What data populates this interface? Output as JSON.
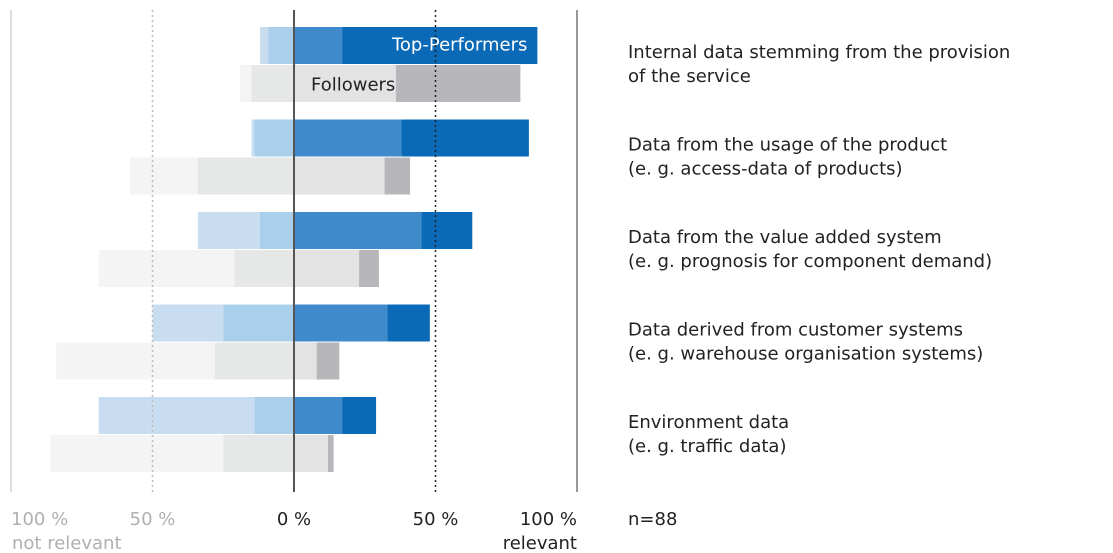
{
  "chart_data": {
    "type": "diverging_bar",
    "categories": [
      "Internal data stemming from the provision\nof the service",
      "Data from the usage of the product\n(e. g. access-data of products)",
      "Data from the value added system\n(e. g. prognosis for component demand)",
      "Data derived from customer systems\n(e. g. warehouse organisation systems)",
      "Environment data\n(e. g. traffic data)"
    ],
    "groups": [
      {
        "name": "Top-Performers",
        "segments": [
          {
            "color": "#c9ddf1",
            "values": [
              3,
              1,
              22,
              25,
              55
            ]
          },
          {
            "color": "#a9cfea",
            "values": [
              9,
              14,
              12,
              25,
              14
            ]
          },
          {
            "color": "#3f8acb",
            "values": [
              17,
              38,
              45,
              33,
              17
            ]
          },
          {
            "color": "#0a6ab7",
            "values": [
              69,
              45,
              18,
              15,
              12
            ]
          }
        ]
      },
      {
        "name": "Followers",
        "segments": [
          {
            "color": "#f4f4f4",
            "values": [
              4,
              24,
              48,
              56,
              61
            ]
          },
          {
            "color": "#e6e7e7",
            "values": [
              15,
              34,
              21,
              28,
              25
            ]
          },
          {
            "color": "#e3e3e4",
            "values": [
              36,
              32,
              23,
              8,
              12
            ]
          },
          {
            "color": "#b7b7bb",
            "values": [
              44,
              9,
              7,
              8,
              2
            ]
          }
        ]
      }
    ],
    "xlim": [
      -100,
      100
    ],
    "xticks": [
      {
        "value": -100,
        "label": "100 %"
      },
      {
        "value": -50,
        "label": "50 %"
      },
      {
        "value": 0,
        "label": "0 %"
      },
      {
        "value": 50,
        "label": "50 %"
      },
      {
        "value": 100,
        "label": "100 %"
      }
    ],
    "left_label": "not relevant",
    "right_label": "relevant",
    "note": "n=88"
  }
}
